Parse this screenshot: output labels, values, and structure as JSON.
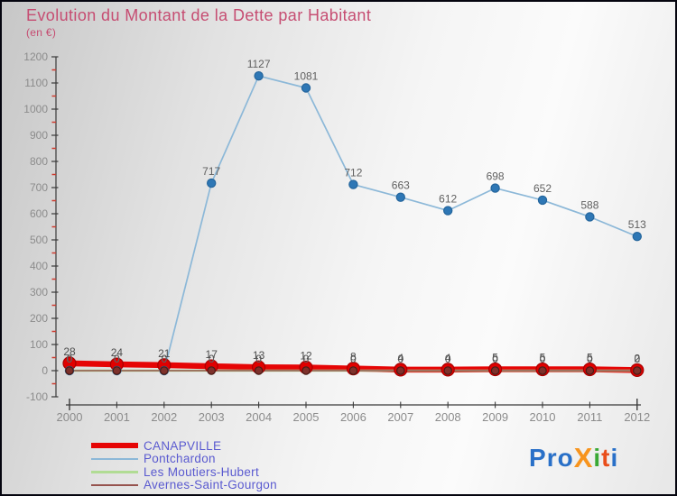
{
  "page": {
    "title": "Evolution du Montant de la Dette par Habitant",
    "subtitle": "(en €)"
  },
  "chart_data": {
    "type": "line",
    "title": "Evolution du Montant de la Dette par Habitant",
    "xlabel": "",
    "ylabel": "(en €)",
    "categories": [
      2000,
      2001,
      2002,
      2003,
      2004,
      2005,
      2006,
      2007,
      2008,
      2009,
      2010,
      2011,
      2012
    ],
    "series": [
      {
        "name": "CANAPVILLE",
        "values": [
          28,
          24,
          21,
          17,
          13,
          12,
          8,
          4,
          4,
          5,
          5,
          5,
          2
        ],
        "line_color": "#e60505",
        "line_width": 6.5,
        "marker_color": "#e00000",
        "marker_edge": "#a80000",
        "marker_radius": 7,
        "legend_thickness": 6,
        "show_labels": true
      },
      {
        "name": "Pontchardon",
        "values": [
          0,
          0,
          0,
          717,
          1127,
          1081,
          712,
          663,
          612,
          698,
          652,
          588,
          513
        ],
        "line_color": "#8cb8d8",
        "line_width": 1.7,
        "marker_color": "#2e77b5",
        "marker_edge": "#24659c",
        "marker_radius": 4.6,
        "legend_thickness": 2.5,
        "show_labels": true
      },
      {
        "name": "Les Moutiers-Hubert",
        "values": [
          0,
          0,
          0,
          0,
          0,
          0,
          0,
          0,
          0,
          0,
          0,
          0,
          0
        ],
        "line_color": "#b1dc94",
        "line_width": 2.4,
        "marker_color": "#9ccb75",
        "marker_edge": "#85b55c",
        "marker_radius": 4,
        "legend_thickness": 2.5,
        "show_labels": true
      },
      {
        "name": "Avernes-Saint-Gourgon",
        "values": [
          0,
          0,
          0,
          0,
          0,
          0,
          0,
          0,
          0,
          0,
          0,
          0,
          0
        ],
        "line_color": "#96534e",
        "line_width": 1.4,
        "marker_color": "#7e312b",
        "marker_edge": "#4a1a16",
        "marker_radius": 4.2,
        "legend_thickness": 2.5,
        "show_labels": true
      }
    ],
    "ylim": [
      -100,
      1200
    ],
    "ytick_step": 100,
    "yminor_step": 50,
    "grid": false,
    "legend_position": "bottom-left"
  },
  "colors": {
    "title": "#c64d72",
    "legend_text": "#5a5ad0",
    "axis": "#3a3a3a",
    "tick_label": "#8c8c8c",
    "data_label": "#606060",
    "canapville_label": "#4f4f4f",
    "minor_tick": "#cc3b2f"
  },
  "logo": {
    "text": "Proxiti",
    "letters": [
      {
        "ch": "P",
        "color": "#2970c8"
      },
      {
        "ch": "r",
        "color": "#2970c8"
      },
      {
        "ch": "o",
        "color": "#2970c8"
      },
      {
        "ch": "X",
        "color": "#f7941e",
        "big": true
      },
      {
        "ch": "i",
        "color": "#3aa935"
      },
      {
        "ch": "t",
        "color": "#e94e1b"
      },
      {
        "ch": "i",
        "color": "#2970c8"
      }
    ]
  }
}
